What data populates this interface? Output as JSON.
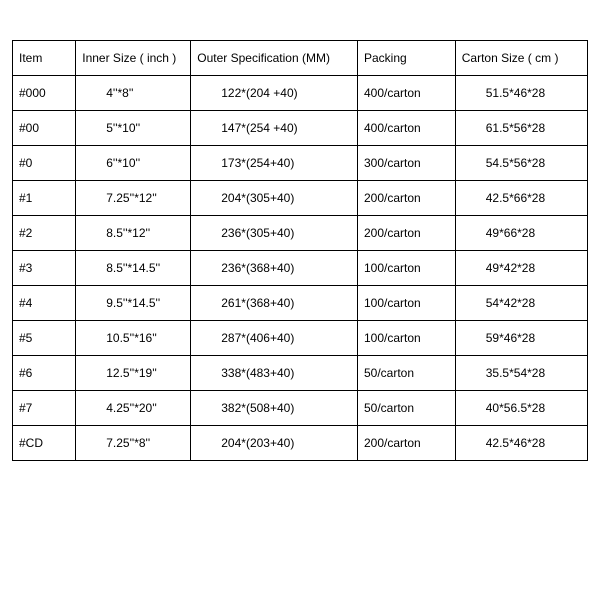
{
  "table": {
    "type": "table",
    "columns": [
      {
        "label": "Item",
        "class": "c0"
      },
      {
        "label": "Inner Size ( inch )",
        "class": "c1"
      },
      {
        "label": "Outer Specification (MM)",
        "class": "c2"
      },
      {
        "label": "Packing",
        "class": "c3"
      },
      {
        "label": "Carton Size ( cm )",
        "class": "c4"
      }
    ],
    "rows": [
      [
        "#000",
        "4''*8''",
        "122*(204 +40)",
        "400/carton",
        "51.5*46*28"
      ],
      [
        "#00",
        "5''*10''",
        "147*(254 +40)",
        "400/carton",
        "61.5*56*28"
      ],
      [
        "#0",
        "6''*10''",
        "173*(254+40)",
        "300/carton",
        "54.5*56*28"
      ],
      [
        "#1",
        "7.25''*12''",
        "204*(305+40)",
        "200/carton",
        "42.5*66*28"
      ],
      [
        "#2",
        "8.5''*12''",
        "236*(305+40)",
        "200/carton",
        "49*66*28"
      ],
      [
        "#3",
        "8.5''*14.5''",
        "236*(368+40)",
        "100/carton",
        "49*42*28"
      ],
      [
        "#4",
        "9.5''*14.5''",
        "261*(368+40)",
        "100/carton",
        "54*42*28"
      ],
      [
        "#5",
        "10.5''*16''",
        "287*(406+40)",
        "100/carton",
        "59*46*28"
      ],
      [
        "#6",
        "12.5''*19''",
        "338*(483+40)",
        "50/carton",
        "35.5*54*28"
      ],
      [
        "#7",
        "4.25''*20''",
        "382*(508+40)",
        "50/carton",
        "40*56.5*28"
      ],
      [
        "#CD",
        "7.25''*8''",
        "204*(203+40)",
        "200/carton",
        "42.5*46*28"
      ]
    ],
    "border_color": "#000000",
    "background_color": "#ffffff",
    "text_color": "#000000",
    "font_size_pt": 9,
    "font_family": "Arial"
  }
}
